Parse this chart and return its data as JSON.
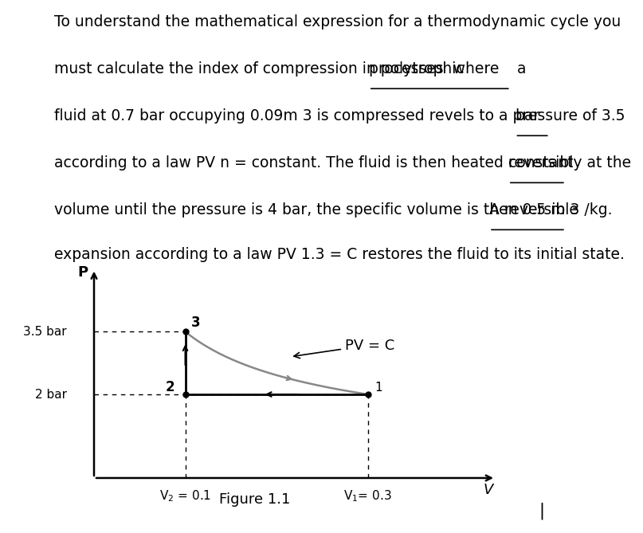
{
  "p1": [
    0.3,
    2.0
  ],
  "p2": [
    0.1,
    2.0
  ],
  "p3": [
    0.1,
    3.5
  ],
  "fig_title": "Figure 1.1",
  "bg_color": "#ffffff",
  "fs_text": 13.5,
  "fs_diagram": 11,
  "line1": "To understand the mathematical expression for a thermodynamic cycle you",
  "line2a": "must calculate the index of compression in polytrophic ",
  "line2b": "processes  where",
  "line2c": " a",
  "line3a": "fluid at 0.7 bar occupying 0.09m 3 is compressed revels to a pressure of 3.5 ",
  "line3b": "bar",
  "line4a": "according to a law PV n = constant. The fluid is then heated reversibly at the ",
  "line4b": "constant",
  "line5a": "volume until the pressure is 4 bar, the specific volume is then 0.5 m 3 /kg. ",
  "line5b": "A reversible",
  "line6": "expansion according to a law PV 1.3 = C restores the fluid to its initial state.",
  "label_35bar": "3.5 bar",
  "label_2bar": "2 bar",
  "label_v2": "V$_2$ = 0.1",
  "label_v1": "V$_1$= 0.3",
  "label_P": "P",
  "label_V": "V",
  "label_pvc": "PV = C",
  "label_pt1": "1",
  "label_pt2": "2",
  "label_pt3": "3"
}
